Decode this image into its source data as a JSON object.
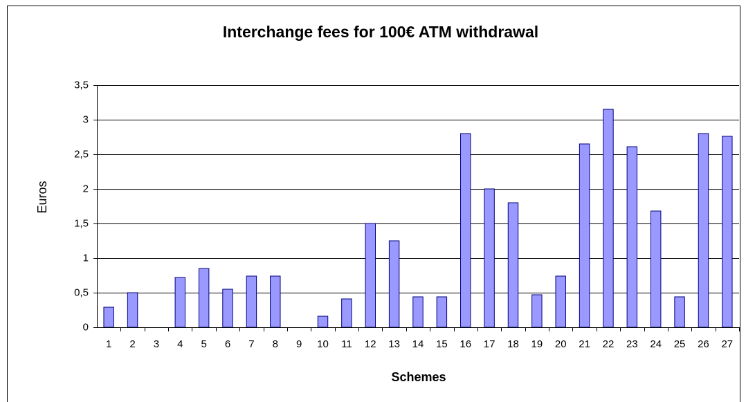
{
  "chart_data": {
    "type": "bar",
    "title": "Interchange fees for 100€ ATM withdrawal",
    "x_label": "Schemes",
    "y_label": "Euros",
    "categories": [
      "1",
      "2",
      "3",
      "4",
      "5",
      "6",
      "7",
      "8",
      "9",
      "10",
      "11",
      "12",
      "13",
      "14",
      "15",
      "16",
      "17",
      "18",
      "19",
      "20",
      "21",
      "22",
      "23",
      "24",
      "25",
      "26",
      "27"
    ],
    "values": [
      0.29,
      0.5,
      0,
      0.72,
      0.85,
      0.55,
      0.74,
      0.74,
      0,
      0.16,
      0.41,
      1.5,
      1.25,
      0.44,
      0.44,
      2.8,
      2.0,
      1.8,
      0.47,
      0.74,
      2.65,
      3.15,
      2.61,
      1.68,
      0.44,
      2.8,
      2.76
    ],
    "color": "#9999ff",
    "ylim": [
      0,
      3.5
    ],
    "yticks": [
      0,
      {
        "value": 0.5,
        "label": "0,5"
      },
      1,
      {
        "value": 1.5,
        "label": "1,5"
      },
      2,
      {
        "value": 2.5,
        "label": "2,5"
      },
      3,
      {
        "value": 3.5,
        "label": "3,5"
      }
    ],
    "grid": true
  }
}
